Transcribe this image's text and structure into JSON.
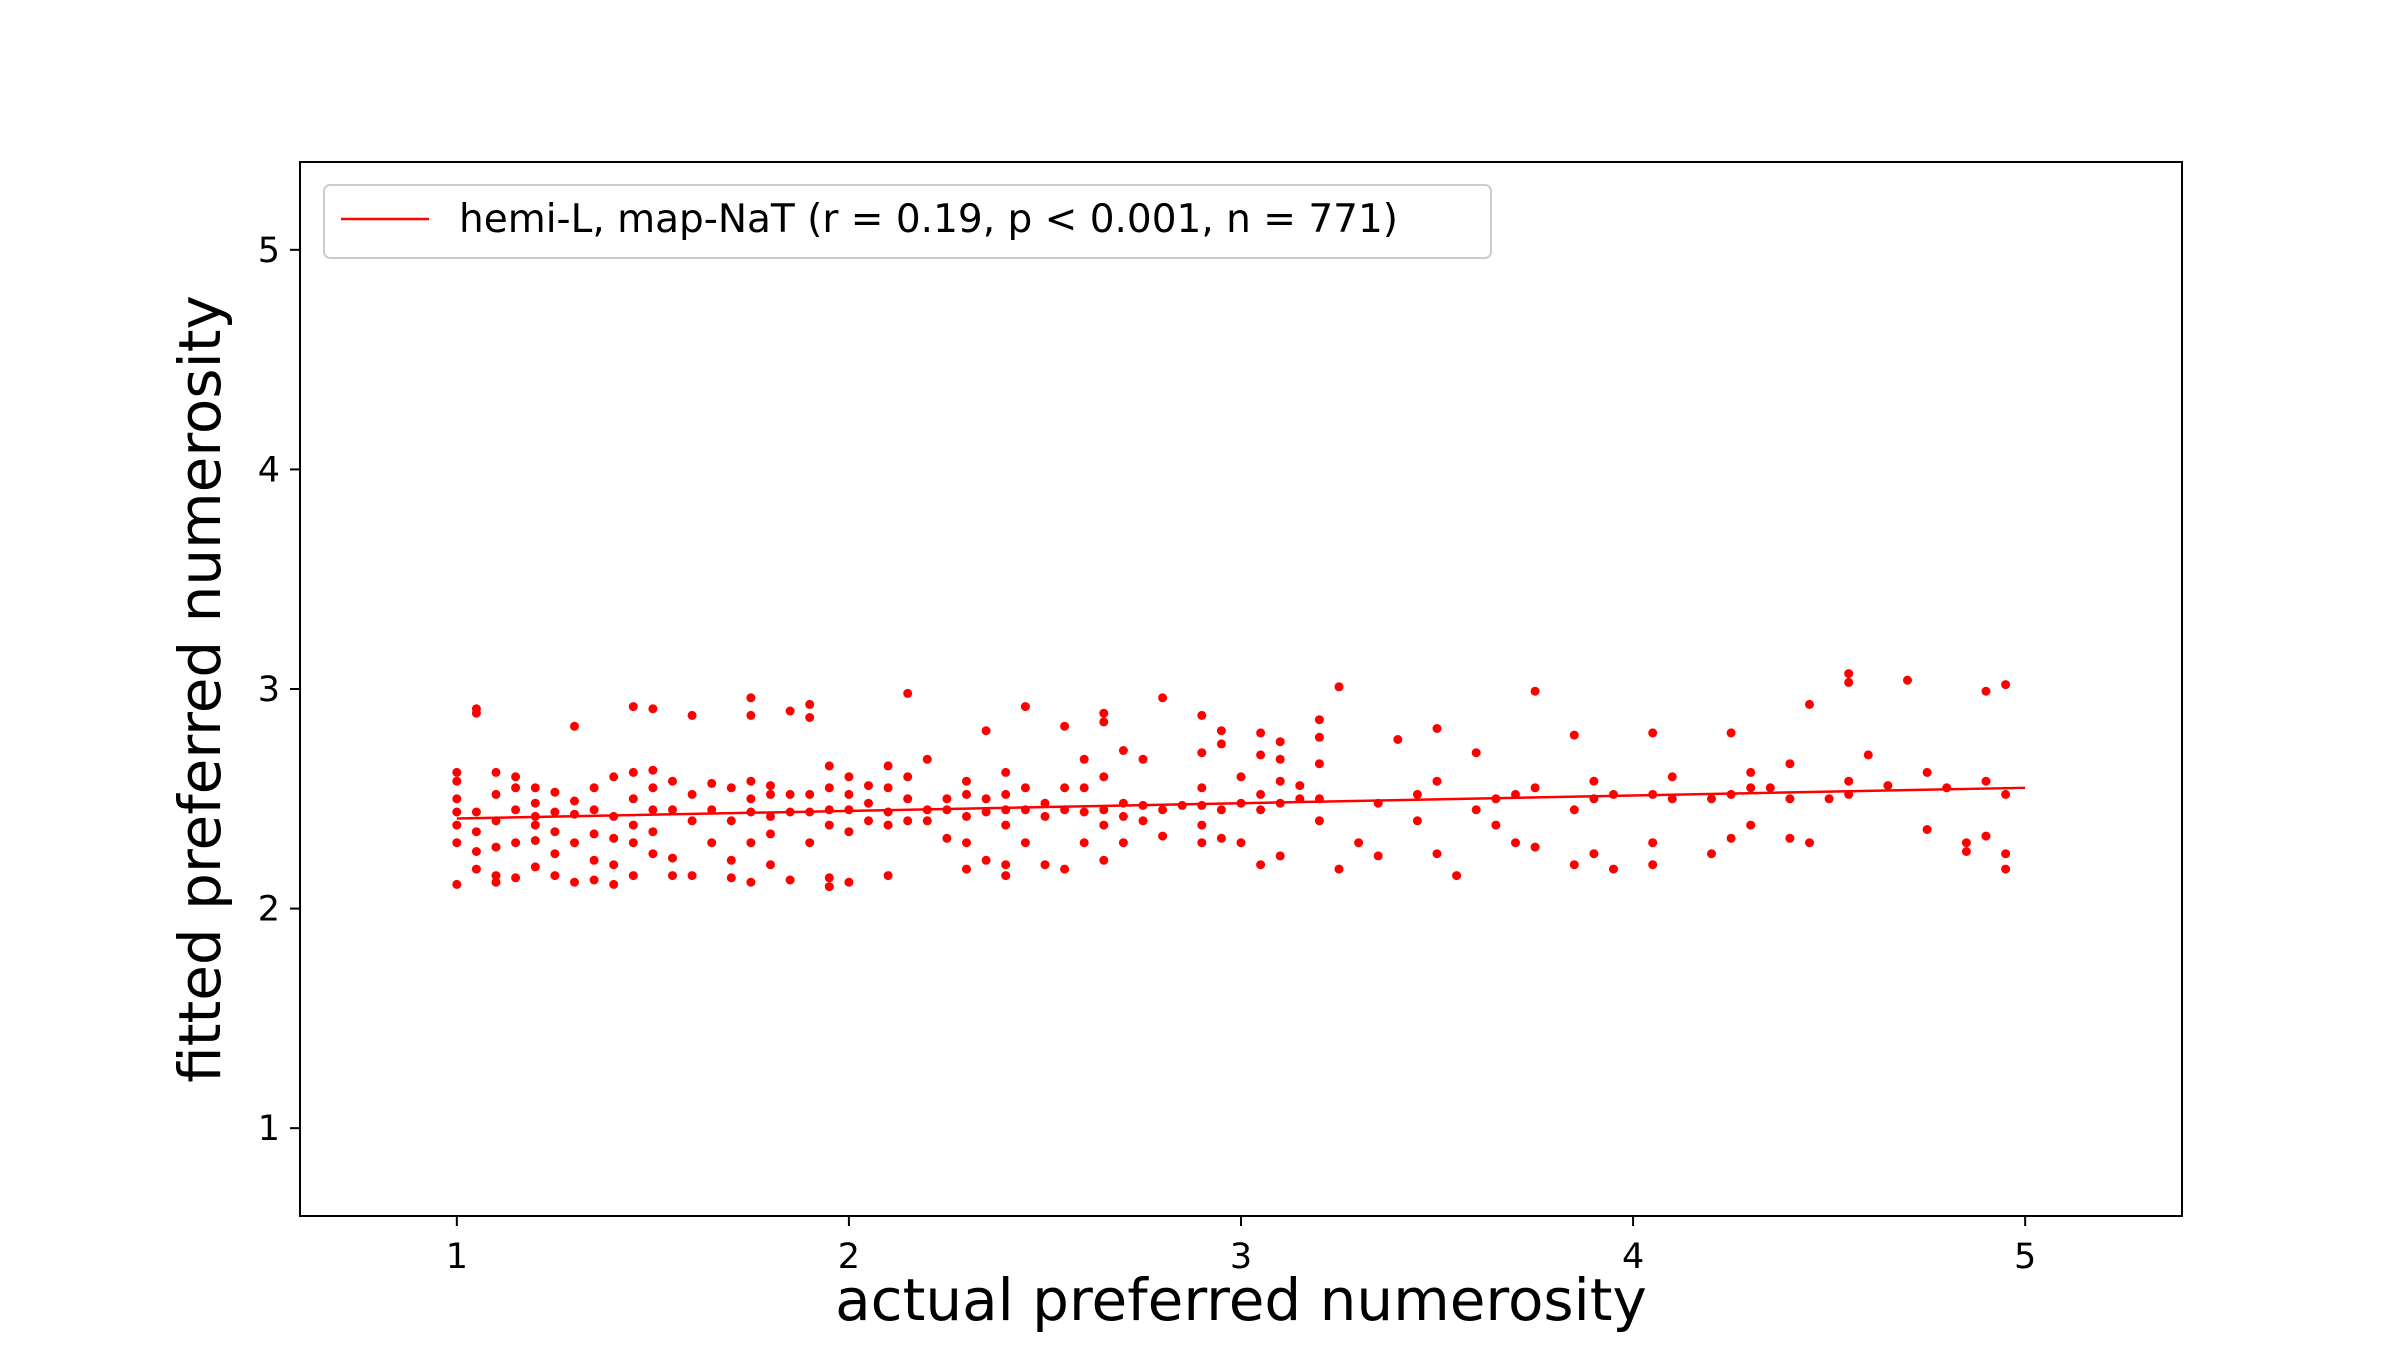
{
  "chart_data": {
    "type": "scatter",
    "xlabel": "actual preferred numerosity",
    "ylabel": "fitted preferred numerosity",
    "xlim": [
      0.6,
      5.4
    ],
    "ylim": [
      0.6,
      5.4
    ],
    "xticks": [
      1,
      2,
      3,
      4,
      5
    ],
    "yticks": [
      1,
      2,
      3,
      4,
      5
    ],
    "grid": false,
    "legend_position": "top-left",
    "color": "#ff0000",
    "series": [
      {
        "name": "hemi-L, map-NaT (r = 0.19, p < 0.001, n = 771)",
        "fit_line": {
          "x": [
            1.0,
            5.0
          ],
          "y": [
            2.41,
            2.55
          ]
        },
        "points": [
          [
            1.0,
            2.11
          ],
          [
            1.0,
            2.3
          ],
          [
            1.0,
            2.38
          ],
          [
            1.0,
            2.44
          ],
          [
            1.0,
            2.5
          ],
          [
            1.0,
            2.58
          ],
          [
            1.0,
            2.62
          ],
          [
            1.05,
            2.18
          ],
          [
            1.05,
            2.26
          ],
          [
            1.05,
            2.35
          ],
          [
            1.05,
            2.44
          ],
          [
            1.05,
            2.89
          ],
          [
            1.05,
            2.91
          ],
          [
            1.1,
            2.12
          ],
          [
            1.1,
            2.15
          ],
          [
            1.1,
            2.28
          ],
          [
            1.1,
            2.4
          ],
          [
            1.1,
            2.52
          ],
          [
            1.1,
            2.62
          ],
          [
            1.15,
            2.14
          ],
          [
            1.15,
            2.3
          ],
          [
            1.15,
            2.45
          ],
          [
            1.15,
            2.55
          ],
          [
            1.15,
            2.6
          ],
          [
            1.2,
            2.19
          ],
          [
            1.2,
            2.31
          ],
          [
            1.2,
            2.38
          ],
          [
            1.2,
            2.42
          ],
          [
            1.2,
            2.48
          ],
          [
            1.2,
            2.55
          ],
          [
            1.25,
            2.15
          ],
          [
            1.25,
            2.25
          ],
          [
            1.25,
            2.35
          ],
          [
            1.25,
            2.44
          ],
          [
            1.25,
            2.53
          ],
          [
            1.3,
            2.12
          ],
          [
            1.3,
            2.3
          ],
          [
            1.3,
            2.43
          ],
          [
            1.3,
            2.49
          ],
          [
            1.3,
            2.83
          ],
          [
            1.35,
            2.13
          ],
          [
            1.35,
            2.22
          ],
          [
            1.35,
            2.34
          ],
          [
            1.35,
            2.45
          ],
          [
            1.35,
            2.55
          ],
          [
            1.4,
            2.11
          ],
          [
            1.4,
            2.2
          ],
          [
            1.4,
            2.32
          ],
          [
            1.4,
            2.42
          ],
          [
            1.4,
            2.6
          ],
          [
            1.45,
            2.15
          ],
          [
            1.45,
            2.3
          ],
          [
            1.45,
            2.38
          ],
          [
            1.45,
            2.5
          ],
          [
            1.45,
            2.62
          ],
          [
            1.45,
            2.92
          ],
          [
            1.5,
            2.25
          ],
          [
            1.5,
            2.35
          ],
          [
            1.5,
            2.45
          ],
          [
            1.5,
            2.55
          ],
          [
            1.5,
            2.63
          ],
          [
            1.5,
            2.91
          ],
          [
            1.55,
            2.15
          ],
          [
            1.55,
            2.23
          ],
          [
            1.55,
            2.45
          ],
          [
            1.55,
            2.58
          ],
          [
            1.6,
            2.15
          ],
          [
            1.6,
            2.4
          ],
          [
            1.6,
            2.52
          ],
          [
            1.6,
            2.88
          ],
          [
            1.65,
            2.3
          ],
          [
            1.65,
            2.45
          ],
          [
            1.65,
            2.57
          ],
          [
            1.7,
            2.14
          ],
          [
            1.7,
            2.22
          ],
          [
            1.7,
            2.4
          ],
          [
            1.7,
            2.55
          ],
          [
            1.75,
            2.12
          ],
          [
            1.75,
            2.3
          ],
          [
            1.75,
            2.44
          ],
          [
            1.75,
            2.5
          ],
          [
            1.75,
            2.58
          ],
          [
            1.75,
            2.88
          ],
          [
            1.75,
            2.96
          ],
          [
            1.8,
            2.2
          ],
          [
            1.8,
            2.34
          ],
          [
            1.8,
            2.42
          ],
          [
            1.8,
            2.52
          ],
          [
            1.8,
            2.56
          ],
          [
            1.85,
            2.13
          ],
          [
            1.85,
            2.44
          ],
          [
            1.85,
            2.52
          ],
          [
            1.85,
            2.9
          ],
          [
            1.9,
            2.3
          ],
          [
            1.9,
            2.44
          ],
          [
            1.9,
            2.52
          ],
          [
            1.9,
            2.87
          ],
          [
            1.9,
            2.93
          ],
          [
            1.95,
            2.1
          ],
          [
            1.95,
            2.14
          ],
          [
            1.95,
            2.38
          ],
          [
            1.95,
            2.45
          ],
          [
            1.95,
            2.55
          ],
          [
            1.95,
            2.65
          ],
          [
            2.0,
            2.12
          ],
          [
            2.0,
            2.35
          ],
          [
            2.0,
            2.45
          ],
          [
            2.0,
            2.52
          ],
          [
            2.0,
            2.6
          ],
          [
            2.05,
            2.4
          ],
          [
            2.05,
            2.48
          ],
          [
            2.05,
            2.56
          ],
          [
            2.1,
            2.15
          ],
          [
            2.1,
            2.38
          ],
          [
            2.1,
            2.44
          ],
          [
            2.1,
            2.55
          ],
          [
            2.1,
            2.65
          ],
          [
            2.15,
            2.4
          ],
          [
            2.15,
            2.5
          ],
          [
            2.15,
            2.6
          ],
          [
            2.15,
            2.98
          ],
          [
            2.2,
            2.4
          ],
          [
            2.2,
            2.45
          ],
          [
            2.2,
            2.68
          ],
          [
            2.25,
            2.32
          ],
          [
            2.25,
            2.45
          ],
          [
            2.25,
            2.5
          ],
          [
            2.3,
            2.18
          ],
          [
            2.3,
            2.3
          ],
          [
            2.3,
            2.42
          ],
          [
            2.3,
            2.52
          ],
          [
            2.3,
            2.58
          ],
          [
            2.35,
            2.22
          ],
          [
            2.35,
            2.44
          ],
          [
            2.35,
            2.5
          ],
          [
            2.35,
            2.81
          ],
          [
            2.4,
            2.15
          ],
          [
            2.4,
            2.2
          ],
          [
            2.4,
            2.38
          ],
          [
            2.4,
            2.45
          ],
          [
            2.4,
            2.52
          ],
          [
            2.4,
            2.62
          ],
          [
            2.45,
            2.3
          ],
          [
            2.45,
            2.45
          ],
          [
            2.45,
            2.55
          ],
          [
            2.45,
            2.92
          ],
          [
            2.5,
            2.2
          ],
          [
            2.5,
            2.42
          ],
          [
            2.5,
            2.48
          ],
          [
            2.55,
            2.18
          ],
          [
            2.55,
            2.45
          ],
          [
            2.55,
            2.55
          ],
          [
            2.55,
            2.83
          ],
          [
            2.6,
            2.3
          ],
          [
            2.6,
            2.44
          ],
          [
            2.6,
            2.55
          ],
          [
            2.6,
            2.68
          ],
          [
            2.65,
            2.22
          ],
          [
            2.65,
            2.38
          ],
          [
            2.65,
            2.45
          ],
          [
            2.65,
            2.6
          ],
          [
            2.65,
            2.85
          ],
          [
            2.65,
            2.89
          ],
          [
            2.7,
            2.3
          ],
          [
            2.7,
            2.42
          ],
          [
            2.7,
            2.48
          ],
          [
            2.7,
            2.72
          ],
          [
            2.75,
            2.4
          ],
          [
            2.75,
            2.47
          ],
          [
            2.75,
            2.68
          ],
          [
            2.8,
            2.33
          ],
          [
            2.8,
            2.45
          ],
          [
            2.8,
            2.96
          ],
          [
            2.85,
            2.47
          ],
          [
            2.9,
            2.3
          ],
          [
            2.9,
            2.38
          ],
          [
            2.9,
            2.47
          ],
          [
            2.9,
            2.55
          ],
          [
            2.9,
            2.71
          ],
          [
            2.9,
            2.88
          ],
          [
            2.95,
            2.32
          ],
          [
            2.95,
            2.45
          ],
          [
            2.95,
            2.75
          ],
          [
            2.95,
            2.81
          ],
          [
            3.0,
            2.3
          ],
          [
            3.0,
            2.48
          ],
          [
            3.0,
            2.6
          ],
          [
            3.05,
            2.2
          ],
          [
            3.05,
            2.45
          ],
          [
            3.05,
            2.52
          ],
          [
            3.05,
            2.7
          ],
          [
            3.05,
            2.8
          ],
          [
            3.1,
            2.24
          ],
          [
            3.1,
            2.48
          ],
          [
            3.1,
            2.58
          ],
          [
            3.1,
            2.68
          ],
          [
            3.1,
            2.76
          ],
          [
            3.15,
            2.5
          ],
          [
            3.15,
            2.56
          ],
          [
            3.2,
            2.4
          ],
          [
            3.2,
            2.5
          ],
          [
            3.2,
            2.66
          ],
          [
            3.2,
            2.78
          ],
          [
            3.2,
            2.86
          ],
          [
            3.25,
            2.18
          ],
          [
            3.25,
            3.01
          ],
          [
            3.3,
            2.3
          ],
          [
            3.35,
            2.24
          ],
          [
            3.35,
            2.48
          ],
          [
            3.4,
            2.77
          ],
          [
            3.45,
            2.4
          ],
          [
            3.45,
            2.52
          ],
          [
            3.5,
            2.25
          ],
          [
            3.5,
            2.58
          ],
          [
            3.5,
            2.82
          ],
          [
            3.55,
            2.15
          ],
          [
            3.6,
            2.45
          ],
          [
            3.6,
            2.71
          ],
          [
            3.65,
            2.38
          ],
          [
            3.65,
            2.5
          ],
          [
            3.7,
            2.3
          ],
          [
            3.7,
            2.52
          ],
          [
            3.75,
            2.28
          ],
          [
            3.75,
            2.55
          ],
          [
            3.75,
            2.99
          ],
          [
            3.85,
            2.2
          ],
          [
            3.85,
            2.45
          ],
          [
            3.85,
            2.79
          ],
          [
            3.9,
            2.25
          ],
          [
            3.9,
            2.5
          ],
          [
            3.9,
            2.58
          ],
          [
            3.95,
            2.18
          ],
          [
            3.95,
            2.52
          ],
          [
            4.05,
            2.2
          ],
          [
            4.05,
            2.3
          ],
          [
            4.05,
            2.52
          ],
          [
            4.05,
            2.8
          ],
          [
            4.1,
            2.5
          ],
          [
            4.1,
            2.6
          ],
          [
            4.2,
            2.5
          ],
          [
            4.2,
            2.25
          ],
          [
            4.25,
            2.32
          ],
          [
            4.25,
            2.52
          ],
          [
            4.25,
            2.8
          ],
          [
            4.3,
            2.38
          ],
          [
            4.3,
            2.55
          ],
          [
            4.3,
            2.62
          ],
          [
            4.35,
            2.55
          ],
          [
            4.4,
            2.32
          ],
          [
            4.4,
            2.5
          ],
          [
            4.4,
            2.66
          ],
          [
            4.45,
            2.3
          ],
          [
            4.45,
            2.93
          ],
          [
            4.5,
            2.5
          ],
          [
            4.55,
            2.52
          ],
          [
            4.55,
            2.58
          ],
          [
            4.55,
            3.03
          ],
          [
            4.55,
            3.07
          ],
          [
            4.6,
            2.7
          ],
          [
            4.65,
            2.56
          ],
          [
            4.7,
            3.04
          ],
          [
            4.75,
            2.36
          ],
          [
            4.75,
            2.62
          ],
          [
            4.8,
            2.55
          ],
          [
            4.85,
            2.26
          ],
          [
            4.85,
            2.3
          ],
          [
            4.9,
            2.33
          ],
          [
            4.9,
            2.58
          ],
          [
            4.9,
            2.99
          ],
          [
            4.95,
            2.18
          ],
          [
            4.95,
            2.25
          ],
          [
            4.95,
            2.52
          ],
          [
            4.95,
            3.02
          ]
        ]
      }
    ]
  }
}
